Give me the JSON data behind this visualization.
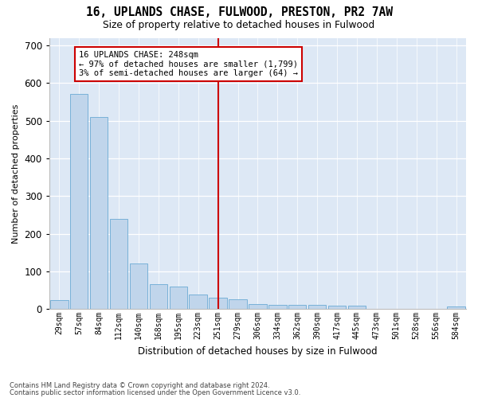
{
  "title1": "16, UPLANDS CHASE, FULWOOD, PRESTON, PR2 7AW",
  "title2": "Size of property relative to detached houses in Fulwood",
  "xlabel": "Distribution of detached houses by size in Fulwood",
  "ylabel": "Number of detached properties",
  "footnote1": "Contains HM Land Registry data © Crown copyright and database right 2024.",
  "footnote2": "Contains public sector information licensed under the Open Government Licence v3.0.",
  "annotation_title": "16 UPLANDS CHASE: 248sqm",
  "annotation_line1": "← 97% of detached houses are smaller (1,799)",
  "annotation_line2": "3% of semi-detached houses are larger (64) →",
  "vline_bin_index": 8,
  "bar_color": "#c0d5eb",
  "bar_edge_color": "#6aaad4",
  "vline_color": "#cc0000",
  "annotation_box_edgecolor": "#cc0000",
  "bg_color": "#dde8f5",
  "categories": [
    "29sqm",
    "57sqm",
    "84sqm",
    "112sqm",
    "140sqm",
    "168sqm",
    "195sqm",
    "223sqm",
    "251sqm",
    "279sqm",
    "306sqm",
    "334sqm",
    "362sqm",
    "390sqm",
    "417sqm",
    "445sqm",
    "473sqm",
    "501sqm",
    "528sqm",
    "556sqm",
    "584sqm"
  ],
  "values": [
    23,
    570,
    510,
    240,
    120,
    65,
    60,
    38,
    30,
    25,
    12,
    10,
    10,
    10,
    9,
    8,
    0,
    0,
    0,
    0,
    7
  ],
  "ylim": [
    0,
    720
  ],
  "yticks": [
    0,
    100,
    200,
    300,
    400,
    500,
    600,
    700
  ],
  "figwidth": 6.0,
  "figheight": 5.0,
  "dpi": 100
}
